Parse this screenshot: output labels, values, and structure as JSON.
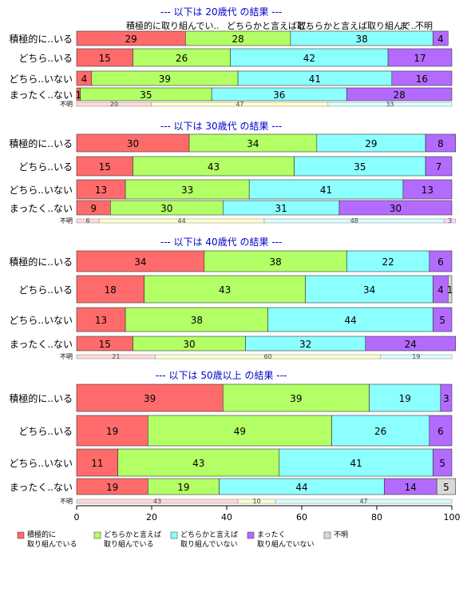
{
  "chart_data": {
    "type": "bar",
    "orientation": "horizontal",
    "stacked": true,
    "xlim": [
      0,
      100
    ],
    "x_ticks": [
      "0",
      "20",
      "40",
      "60",
      "80",
      "100"
    ],
    "column_headers": [
      "積極的に取り組んでい..",
      "どちらかと言えば取..",
      "どちらかと言えば取り組んで..",
      "ま",
      "不明"
    ],
    "colors": [
      "#ff6b6b",
      "#b3ff66",
      "#8cffff",
      "#b36bff",
      "#d9d9d9"
    ],
    "thin_colors": [
      "#ffd9d9",
      "#ffffcc",
      "#d9ffff",
      "#ffd9ff"
    ],
    "legend": [
      {
        "line1": "積極的に",
        "line2": "取り組んでいる"
      },
      {
        "line1": "どちらかと言えば",
        "line2": "取り組んでいる"
      },
      {
        "line1": "どちらかと言えば",
        "line2": "取り組んでいない"
      },
      {
        "line1": "まったく",
        "line2": "取り組んでいない"
      },
      {
        "line1": "不明",
        "line2": ""
      }
    ],
    "panels": [
      {
        "title": "--- 以下は 20歳代 の結果 ---",
        "rows": [
          {
            "label": "積極的に..いる",
            "values": [
              29,
              28,
              38,
              4,
              0
            ],
            "text": [
              "29",
              "28",
              "38",
              "4",
              ""
            ]
          },
          {
            "label": "どちら..いる",
            "values": [
              15,
              26,
              42,
              17,
              0
            ],
            "text": [
              "15",
              "26",
              "42",
              "17",
              ""
            ]
          },
          {
            "label": "どちら..いない",
            "values": [
              4,
              39,
              41,
              16,
              0
            ],
            "text": [
              "4",
              "39",
              "41",
              "16",
              ""
            ]
          },
          {
            "label": "まったく..ない",
            "values": [
              1,
              35,
              36,
              28,
              0
            ],
            "text": [
              "1",
              "35",
              "36",
              "28",
              ""
            ]
          }
        ],
        "unknown": {
          "label": "不明",
          "values": [
            20,
            47,
            33
          ],
          "text": [
            "20",
            "47",
            "33"
          ]
        }
      },
      {
        "title": "--- 以下は 30歳代 の結果 ---",
        "rows": [
          {
            "label": "積極的に..いる",
            "values": [
              30,
              34,
              29,
              8,
              0
            ],
            "text": [
              "30",
              "34",
              "29",
              "8",
              ""
            ]
          },
          {
            "label": "どちら..いる",
            "values": [
              15,
              43,
              35,
              7,
              0
            ],
            "text": [
              "15",
              "43",
              "35",
              "7",
              ""
            ]
          },
          {
            "label": "どちら..いない",
            "values": [
              13,
              33,
              41,
              13,
              0
            ],
            "text": [
              "13",
              "33",
              "41",
              "13",
              ""
            ]
          },
          {
            "label": "まったく..ない",
            "values": [
              9,
              30,
              31,
              30,
              0
            ],
            "text": [
              "9",
              "30",
              "31",
              "30",
              ""
            ]
          }
        ],
        "unknown": {
          "label": "不明",
          "values": [
            6,
            44,
            48,
            3
          ],
          "text": [
            "6",
            "44",
            "48",
            "3"
          ]
        }
      },
      {
        "title": "--- 以下は 40歳代 の結果 ---",
        "rows": [
          {
            "label": "積極的に..いる",
            "values": [
              34,
              38,
              22,
              6,
              0
            ],
            "text": [
              "34",
              "38",
              "22",
              "6",
              ""
            ]
          },
          {
            "label": "どちら..いる",
            "values": [
              18,
              43,
              34,
              4,
              1
            ],
            "text": [
              "18",
              "43",
              "34",
              "4",
              "1"
            ]
          },
          {
            "label": "どちら..いない",
            "values": [
              13,
              38,
              44,
              5,
              0
            ],
            "text": [
              "13",
              "38",
              "44",
              "5",
              ""
            ]
          },
          {
            "label": "まったく..ない",
            "values": [
              15,
              30,
              32,
              24,
              0
            ],
            "text": [
              "15",
              "30",
              "32",
              "24",
              ""
            ]
          }
        ],
        "unknown": {
          "label": "不明",
          "values": [
            21,
            60,
            19
          ],
          "text": [
            "21",
            "60",
            "19"
          ]
        }
      },
      {
        "title": "--- 以下は 50歳以上 の結果 ---",
        "rows": [
          {
            "label": "積極的に..いる",
            "values": [
              39,
              39,
              19,
              3,
              0
            ],
            "text": [
              "39",
              "39",
              "19",
              "3",
              ""
            ]
          },
          {
            "label": "どちら..いる",
            "values": [
              19,
              49,
              26,
              6,
              0
            ],
            "text": [
              "19",
              "49",
              "26",
              "6",
              ""
            ]
          },
          {
            "label": "どちら..いない",
            "values": [
              11,
              43,
              41,
              5,
              0
            ],
            "text": [
              "11",
              "43",
              "41",
              "5",
              ""
            ]
          },
          {
            "label": "まったく..ない",
            "values": [
              19,
              19,
              44,
              14,
              5
            ],
            "text": [
              "19",
              "19",
              "44",
              "14",
              "5"
            ]
          }
        ],
        "unknown": {
          "label": "不明",
          "values": [
            43,
            10,
            47
          ],
          "text": [
            "43",
            "10",
            "47"
          ]
        }
      }
    ]
  }
}
